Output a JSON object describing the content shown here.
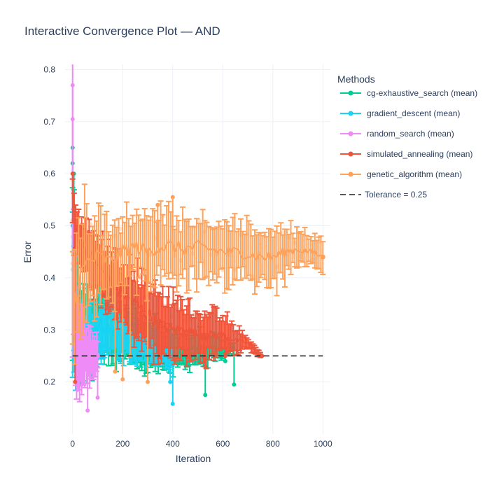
{
  "chart_data": {
    "type": "line",
    "title": "Interactive Convergence Plot — AND",
    "xlabel": "Iteration",
    "ylabel": "Error",
    "xlim": [
      -30,
      1030
    ],
    "ylim": [
      0.1,
      0.81
    ],
    "x_ticks": [
      0,
      200,
      400,
      600,
      800,
      1000
    ],
    "y_ticks": [
      0.2,
      0.3,
      0.4,
      0.5,
      0.6,
      0.7,
      0.8
    ],
    "grid": true,
    "legend_title": "Methods",
    "legend_position": "right",
    "tolerance": {
      "value": 0.25,
      "label": "Tolerance = 0.25"
    },
    "series": [
      {
        "name": "cg-exhaustive_search (mean)",
        "color": "#00cc96",
        "max_iter": 645,
        "points": [
          [
            0,
            0.41
          ],
          [
            5,
            0.45
          ],
          [
            10,
            0.38
          ],
          [
            20,
            0.33
          ],
          [
            30,
            0.31
          ],
          [
            40,
            0.3
          ],
          [
            60,
            0.3
          ],
          [
            80,
            0.3
          ],
          [
            100,
            0.31
          ],
          [
            120,
            0.31
          ],
          [
            150,
            0.3
          ],
          [
            200,
            0.29
          ],
          [
            250,
            0.28
          ],
          [
            300,
            0.27
          ],
          [
            350,
            0.27
          ],
          [
            400,
            0.26
          ],
          [
            450,
            0.26
          ],
          [
            500,
            0.265
          ],
          [
            550,
            0.265
          ],
          [
            600,
            0.265
          ],
          [
            640,
            0.265
          ]
        ],
        "spread": [
          [
            0,
            0.14
          ],
          [
            5,
            0.15
          ],
          [
            20,
            0.1
          ],
          [
            100,
            0.07
          ],
          [
            200,
            0.06
          ],
          [
            300,
            0.05
          ],
          [
            400,
            0.04
          ],
          [
            500,
            0.03
          ],
          [
            600,
            0.02
          ],
          [
            640,
            0.01
          ]
        ],
        "outliers": [
          [
            530,
            0.23
          ],
          [
            530,
            0.175
          ],
          [
            645,
            0.195
          ],
          [
            610,
            0.24
          ],
          [
            0,
            0.62
          ],
          [
            0,
            0.65
          ],
          [
            5,
            0.6
          ]
        ]
      },
      {
        "name": "gradient_descent (mean)",
        "color": "#19d3f3",
        "max_iter": 400,
        "points": [
          [
            0,
            0.39
          ],
          [
            5,
            0.36
          ],
          [
            15,
            0.32
          ],
          [
            30,
            0.3
          ],
          [
            50,
            0.29
          ],
          [
            80,
            0.295
          ],
          [
            120,
            0.3
          ],
          [
            160,
            0.3
          ],
          [
            200,
            0.29
          ],
          [
            250,
            0.27
          ],
          [
            300,
            0.27
          ],
          [
            350,
            0.265
          ],
          [
            400,
            0.26
          ]
        ],
        "spread": [
          [
            0,
            0.16
          ],
          [
            15,
            0.1
          ],
          [
            60,
            0.06
          ],
          [
            150,
            0.05
          ],
          [
            250,
            0.04
          ],
          [
            400,
            0.03
          ]
        ],
        "outliers": [
          [
            400,
            0.158
          ],
          [
            390,
            0.2
          ],
          [
            0,
            0.5
          ],
          [
            5,
            0.45
          ]
        ]
      },
      {
        "name": "random_search (mean)",
        "color": "#ef8bf6",
        "max_iter": 100,
        "points": [
          [
            0,
            0.48
          ],
          [
            5,
            0.36
          ],
          [
            10,
            0.3
          ],
          [
            20,
            0.27
          ],
          [
            30,
            0.26
          ],
          [
            40,
            0.255
          ],
          [
            60,
            0.25
          ],
          [
            80,
            0.25
          ],
          [
            100,
            0.25
          ]
        ],
        "spread": [
          [
            0,
            0.25
          ],
          [
            10,
            0.12
          ],
          [
            30,
            0.08
          ],
          [
            60,
            0.05
          ],
          [
            100,
            0.04
          ]
        ],
        "outliers": [
          [
            0,
            0.77
          ],
          [
            60,
            0.145
          ],
          [
            100,
            0.17
          ],
          [
            20,
            0.185
          ],
          [
            0,
            0.705
          ]
        ]
      },
      {
        "name": "simulated_annealing (mean)",
        "color": "#ef553b",
        "max_iter": 755,
        "points": [
          [
            0,
            0.55
          ],
          [
            5,
            0.52
          ],
          [
            15,
            0.49
          ],
          [
            30,
            0.47
          ],
          [
            60,
            0.45
          ],
          [
            100,
            0.43
          ],
          [
            150,
            0.39
          ],
          [
            200,
            0.37
          ],
          [
            250,
            0.35
          ],
          [
            300,
            0.33
          ],
          [
            350,
            0.31
          ],
          [
            400,
            0.3
          ],
          [
            450,
            0.3
          ],
          [
            500,
            0.29
          ],
          [
            550,
            0.29
          ],
          [
            600,
            0.29
          ],
          [
            650,
            0.28
          ],
          [
            700,
            0.275
          ],
          [
            730,
            0.26
          ],
          [
            755,
            0.25
          ]
        ],
        "spread": [
          [
            0,
            0.06
          ],
          [
            30,
            0.05
          ],
          [
            100,
            0.06
          ],
          [
            200,
            0.07
          ],
          [
            300,
            0.07
          ],
          [
            400,
            0.06
          ],
          [
            500,
            0.05
          ],
          [
            600,
            0.04
          ],
          [
            700,
            0.01
          ],
          [
            755,
            0.005
          ]
        ],
        "outliers": [
          [
            610,
            0.25
          ],
          [
            10,
            0.2
          ],
          [
            0,
            0.6
          ]
        ]
      },
      {
        "name": "genetic_algorithm (mean)",
        "color": "#fea15a",
        "max_iter": 1000,
        "points": [
          [
            0,
            0.38
          ],
          [
            10,
            0.36
          ],
          [
            30,
            0.4
          ],
          [
            60,
            0.43
          ],
          [
            100,
            0.44
          ],
          [
            150,
            0.43
          ],
          [
            200,
            0.45
          ],
          [
            250,
            0.46
          ],
          [
            300,
            0.45
          ],
          [
            350,
            0.46
          ],
          [
            400,
            0.46
          ],
          [
            450,
            0.455
          ],
          [
            500,
            0.46
          ],
          [
            550,
            0.455
          ],
          [
            600,
            0.45
          ],
          [
            650,
            0.45
          ],
          [
            700,
            0.445
          ],
          [
            750,
            0.44
          ],
          [
            800,
            0.44
          ],
          [
            850,
            0.45
          ],
          [
            900,
            0.455
          ],
          [
            950,
            0.45
          ],
          [
            1000,
            0.44
          ]
        ],
        "spread": [
          [
            0,
            0.12
          ],
          [
            30,
            0.12
          ],
          [
            100,
            0.09
          ],
          [
            200,
            0.07
          ],
          [
            300,
            0.07
          ],
          [
            400,
            0.07
          ],
          [
            500,
            0.06
          ],
          [
            600,
            0.06
          ],
          [
            700,
            0.05
          ],
          [
            800,
            0.06
          ],
          [
            900,
            0.04
          ],
          [
            1000,
            0.03
          ]
        ],
        "outliers": [
          [
            340,
            0.54
          ],
          [
            400,
            0.555
          ],
          [
            230,
            0.25
          ],
          [
            300,
            0.2
          ],
          [
            200,
            0.205
          ],
          [
            170,
            0.22
          ]
        ]
      }
    ]
  }
}
